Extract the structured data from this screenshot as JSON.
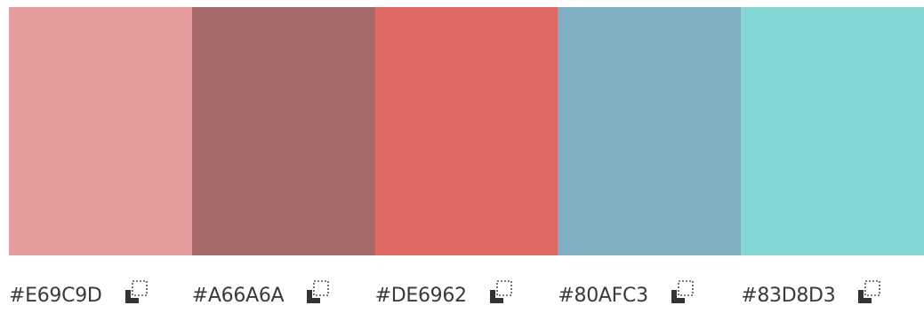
{
  "palette": {
    "colors": [
      {
        "hex": "#E69C9D",
        "label": "#E69C9D"
      },
      {
        "hex": "#A66A6A",
        "label": "#A66A6A"
      },
      {
        "hex": "#DE6962",
        "label": "#DE6962"
      },
      {
        "hex": "#80AFC3",
        "label": "#80AFC3"
      },
      {
        "hex": "#83D8D3",
        "label": "#83D8D3"
      }
    ],
    "copy_icon": "copy-icon"
  }
}
